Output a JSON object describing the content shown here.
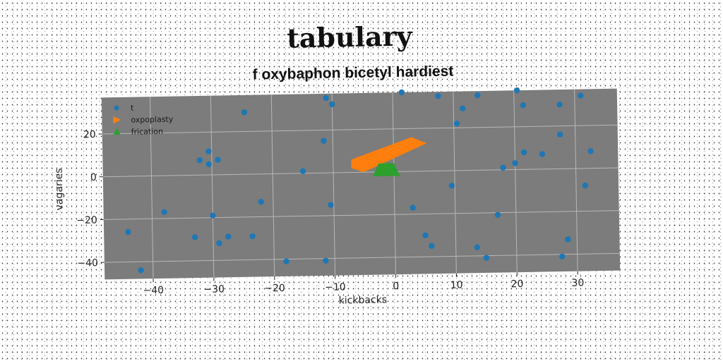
{
  "figure": {
    "title": "tabulary",
    "subtitle": "f oxybaphon bicetyl hardiest"
  },
  "chart_data": {
    "type": "scatter",
    "title": "f oxybaphon bicetyl hardiest",
    "xlabel": "kickbacks",
    "ylabel": "vagaries",
    "xlim": [
      -48,
      37
    ],
    "ylim": [
      -48,
      37
    ],
    "xticks": [
      -40,
      -30,
      -20,
      -10,
      0,
      10,
      20,
      30
    ],
    "yticks": [
      -40,
      -20,
      0,
      20
    ],
    "grid": true,
    "legend_position": "top-left",
    "series": [
      {
        "name": "t",
        "marker": "circle",
        "color": "#1f77b4",
        "points": [
          [
            -44,
            -26
          ],
          [
            -42,
            -44
          ],
          [
            -38,
            -17
          ],
          [
            -33,
            -29
          ],
          [
            -32,
            7
          ],
          [
            -30.5,
            11
          ],
          [
            -30.5,
            5
          ],
          [
            -30,
            -19
          ],
          [
            -29,
            7
          ],
          [
            -29,
            -32
          ],
          [
            -27.5,
            -29
          ],
          [
            -24.5,
            29
          ],
          [
            -23.5,
            -29
          ],
          [
            -22,
            -13
          ],
          [
            -18,
            -41
          ],
          [
            -15,
            1
          ],
          [
            -11.5,
            15
          ],
          [
            -11.5,
            -41
          ],
          [
            -11,
            35
          ],
          [
            -10.5,
            -15
          ],
          [
            -10,
            32
          ],
          [
            1.5,
            37
          ],
          [
            3,
            -17
          ],
          [
            5,
            -30
          ],
          [
            6,
            -35
          ],
          [
            7.5,
            35
          ],
          [
            9.5,
            -7
          ],
          [
            10.5,
            22
          ],
          [
            11.5,
            29
          ],
          [
            13.5,
            -36
          ],
          [
            14,
            35
          ],
          [
            15,
            -41
          ],
          [
            17,
            -21
          ],
          [
            18,
            1
          ],
          [
            20,
            3
          ],
          [
            20.5,
            37
          ],
          [
            21.5,
            30
          ],
          [
            21.5,
            8
          ],
          [
            24.5,
            7
          ],
          [
            27.5,
            30
          ],
          [
            27.5,
            16
          ],
          [
            27.5,
            -41
          ],
          [
            28.5,
            -33
          ],
          [
            31,
            34
          ],
          [
            31.5,
            -8
          ],
          [
            32.5,
            8
          ]
        ]
      },
      {
        "name": "oxpoplasty",
        "marker": "triangle-right",
        "color": "#ff7f0e",
        "polygon": [
          [
            -7,
            2
          ],
          [
            -7,
            6
          ],
          [
            3,
            16
          ],
          [
            5.5,
            13
          ],
          [
            -5,
            0
          ]
        ]
      },
      {
        "name": "frication",
        "marker": "triangle-up",
        "color": "#2ca02c",
        "polygon": [
          [
            -3.5,
            -2
          ],
          [
            -2.5,
            4
          ],
          [
            0,
            4
          ],
          [
            1,
            -2
          ]
        ]
      }
    ]
  }
}
